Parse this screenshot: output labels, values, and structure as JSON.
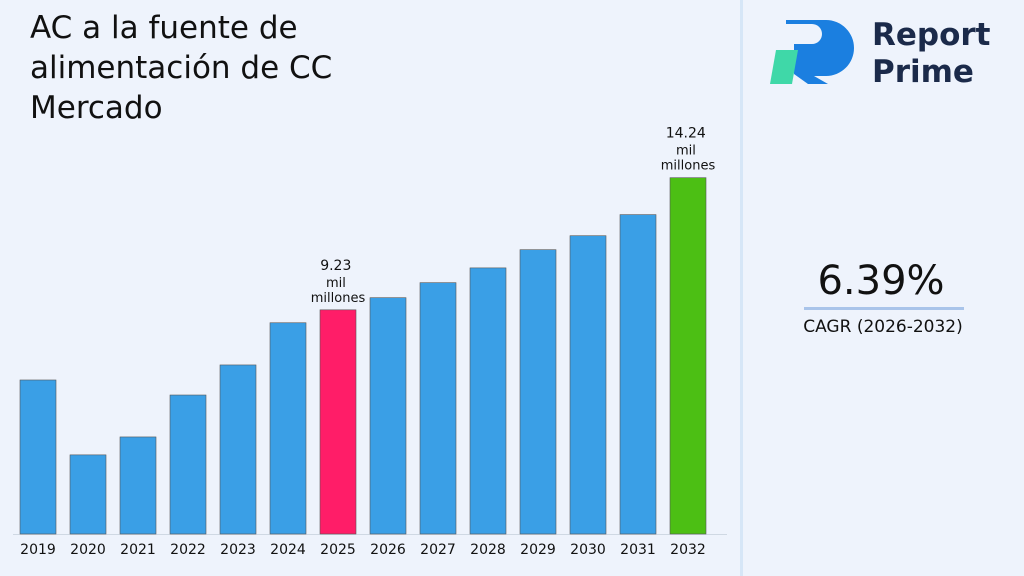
{
  "chart_data": {
    "type": "bar",
    "title": "AC a la fuente de alimentación de CC Mercado",
    "categories": [
      "2019",
      "2020",
      "2021",
      "2022",
      "2023",
      "2024",
      "2025",
      "2026",
      "2027",
      "2028",
      "2029",
      "2030",
      "2031",
      "2032"
    ],
    "values": [
      6.57,
      3.73,
      4.41,
      6.0,
      7.14,
      8.74,
      9.23,
      9.69,
      10.26,
      10.82,
      11.51,
      12.04,
      12.84,
      14.24
    ],
    "value_labels": [
      null,
      null,
      null,
      null,
      null,
      null,
      "9.23 mil millones",
      null,
      null,
      null,
      null,
      null,
      null,
      "14.24 mil millones"
    ],
    "colors": [
      "#3a9fe6",
      "#3a9fe6",
      "#3a9fe6",
      "#3a9fe6",
      "#3a9fe6",
      "#3a9fe6",
      "#ff1d68",
      "#3a9fe6",
      "#3a9fe6",
      "#3a9fe6",
      "#3a9fe6",
      "#3a9fe6",
      "#3a9fe6",
      "#4cbf14"
    ],
    "ylim": [
      0.73,
      17.3
    ]
  },
  "brand": {
    "line1": "Report",
    "line2": "Prime"
  },
  "cagr": {
    "value": "6.39%",
    "label": "CAGR (2026-2032)"
  }
}
